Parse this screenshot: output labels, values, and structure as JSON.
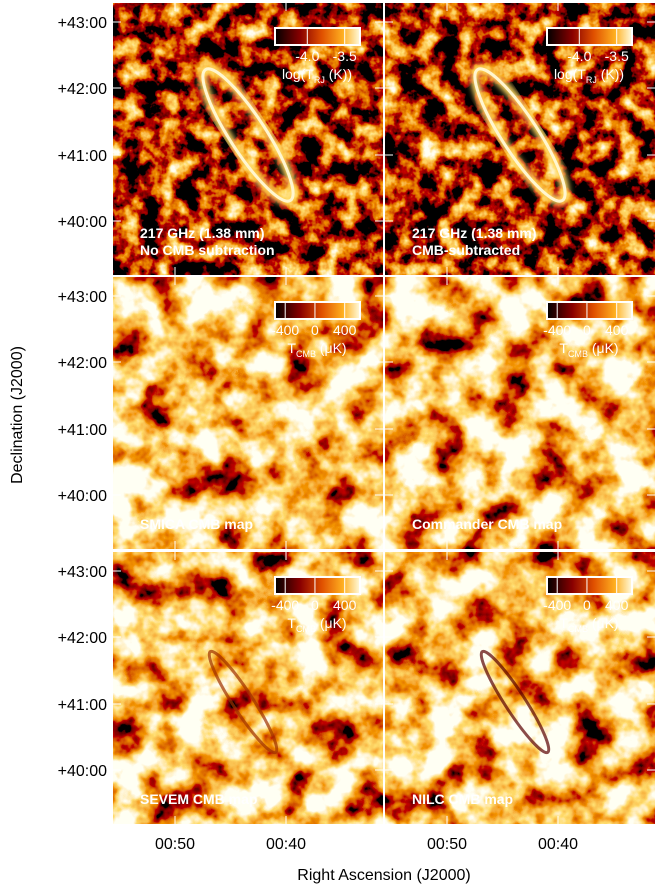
{
  "y_axis": {
    "label": "Declination (J2000)",
    "rows": [
      [
        "+43:00",
        "+42:00",
        "+41:00",
        "+40:00"
      ],
      [
        "+43:00",
        "+42:00",
        "+41:00",
        "+40:00"
      ],
      [
        "+43:00",
        "+42:00",
        "+41:00",
        "+40:00"
      ]
    ]
  },
  "x_axis": {
    "label": "Right Ascension (J2000)",
    "ticks": [
      "00:50",
      "00:40",
      "00:50",
      "00:40"
    ]
  },
  "panels": [
    {
      "lines": [
        "217 GHz (1.38 mm)",
        "No CMB subtraction"
      ],
      "colorbar": {
        "ticks": [
          "-4.0",
          "-3.5"
        ],
        "label": {
          "main": "log(T",
          "sub": "RJ",
          "rest": " (K))"
        }
      }
    },
    {
      "lines": [
        "217 GHz (1.38 mm)",
        "CMB-subtracted"
      ],
      "colorbar": {
        "ticks": [
          "-4.0",
          "-3.5"
        ],
        "label": {
          "main": "log(T",
          "sub": "RJ",
          "rest": " (K))"
        }
      }
    },
    {
      "lines": [
        "SMICA CMB map"
      ],
      "colorbar": {
        "ticks": [
          "-400",
          "0",
          "400"
        ],
        "label": {
          "main": "T",
          "sub": "CMB",
          "rest": " (μK)"
        }
      }
    },
    {
      "lines": [
        "Commander CMB map"
      ],
      "colorbar": {
        "ticks": [
          "-400",
          "0",
          "400"
        ],
        "label": {
          "main": "T",
          "sub": "CMB",
          "rest": " (μK)"
        }
      }
    },
    {
      "lines": [
        "SEVEM CMB map"
      ],
      "colorbar": {
        "ticks": [
          "-400",
          "0",
          "400"
        ],
        "label": {
          "main": "T",
          "sub": "CMB",
          "rest": " (μK)"
        }
      }
    },
    {
      "lines": [
        "NILC CMB map"
      ],
      "colorbar": {
        "ticks": [
          "-400",
          "0",
          "400"
        ],
        "label": {
          "main": "T",
          "sub": "CMB",
          "rest": " (μK)"
        }
      }
    }
  ]
}
